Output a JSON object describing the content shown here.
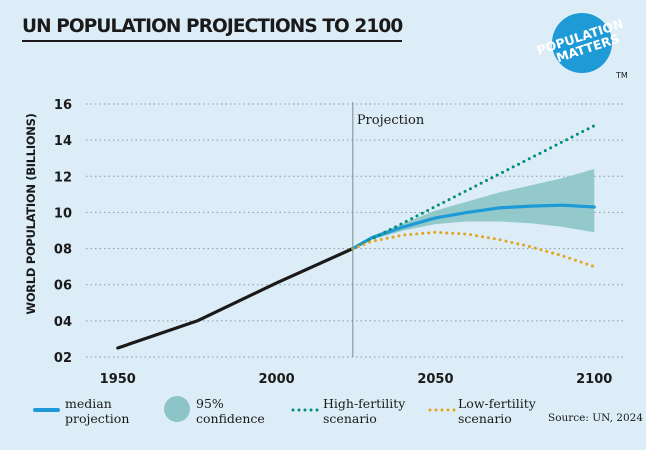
{
  "title": "UN POPULATION PROJECTIONS TO 2100",
  "logo": {
    "line1": "POPULATION",
    "line2": "MATTERS",
    "tm": "TM"
  },
  "legend": {
    "median": "median\nprojection",
    "confidence": "95%\nconfidence",
    "high": "High-fertility\nscenario",
    "low": "Low-fertility\nscenario"
  },
  "source": "Source: UN, 2024",
  "colors": {
    "background": "#dcedf7",
    "historical": "#1a1a1a",
    "median": "#1e9ad6",
    "confidence": "#8cc4c7",
    "high": "#008c7e",
    "low": "#e3a41c",
    "logo": "#1e9ad6"
  },
  "chart_data": {
    "type": "line",
    "ylabel": "WORLD POPULATION (BILLIONS)",
    "xlabel": "",
    "xlim": [
      1940,
      2110
    ],
    "ylim": [
      2,
      16
    ],
    "xticks": [
      1950,
      2000,
      2050,
      2100
    ],
    "xtick_labels": [
      "1950",
      "2000",
      "2050",
      "2100"
    ],
    "yticks": [
      2,
      4,
      6,
      8,
      10,
      12,
      14,
      16
    ],
    "ytick_labels": [
      "02",
      "04",
      "06",
      "08",
      "10",
      "12",
      "14",
      "16"
    ],
    "grid": "horizontal dotted",
    "annotation": {
      "label": "Projection",
      "x": 2024
    },
    "series": [
      {
        "key": "historical",
        "style": "solid",
        "x": [
          1950,
          1975,
          2000,
          2024
        ],
        "y": [
          2.5,
          4.0,
          6.1,
          8.0
        ]
      },
      {
        "key": "median",
        "name": "median projection",
        "style": "solid",
        "x": [
          2024,
          2030,
          2040,
          2050,
          2060,
          2070,
          2080,
          2090,
          2100
        ],
        "y": [
          8.0,
          8.6,
          9.2,
          9.7,
          10.0,
          10.25,
          10.35,
          10.4,
          10.3
        ]
      },
      {
        "key": "high",
        "name": "High-fertility scenario",
        "style": "dotted",
        "x": [
          2024,
          2100
        ],
        "y": [
          8.0,
          14.8
        ]
      },
      {
        "key": "low",
        "name": "Low-fertility scenario",
        "style": "dotted",
        "x": [
          2024,
          2030,
          2040,
          2050,
          2060,
          2070,
          2080,
          2090,
          2100
        ],
        "y": [
          8.0,
          8.4,
          8.75,
          8.9,
          8.8,
          8.5,
          8.1,
          7.6,
          7.0
        ]
      }
    ],
    "band": {
      "key": "confidence",
      "name": "95% confidence",
      "x": [
        2024,
        2030,
        2040,
        2050,
        2060,
        2070,
        2080,
        2090,
        2100
      ],
      "lower": [
        8.0,
        8.5,
        9.0,
        9.35,
        9.5,
        9.5,
        9.4,
        9.2,
        8.9
      ],
      "upper": [
        8.0,
        8.7,
        9.4,
        10.1,
        10.6,
        11.1,
        11.5,
        11.9,
        12.4
      ]
    }
  }
}
